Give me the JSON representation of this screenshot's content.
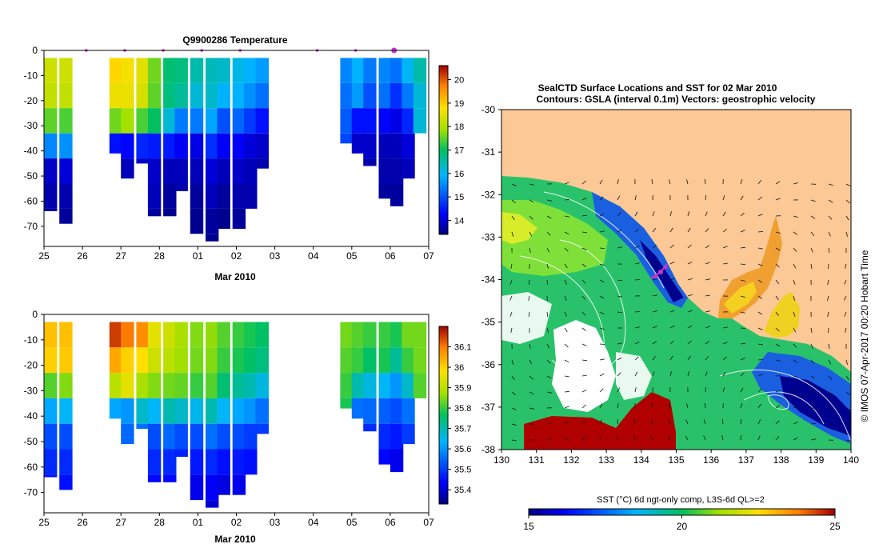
{
  "chart_data": [
    {
      "type": "heatmap",
      "title": "Q9900286  Temperature",
      "xlabel": "Mar 2010",
      "ylabel": "",
      "x_ticks": [
        "25",
        "26",
        "27",
        "28",
        "01",
        "02",
        "03",
        "04",
        "05",
        "06",
        "07"
      ],
      "y_ticks": [
        "0",
        "-10",
        "-20",
        "-30",
        "-40",
        "-50",
        "-60",
        "-70"
      ],
      "ylim": [
        -78,
        0
      ],
      "colorbar": {
        "min": 13.4,
        "max": 20.6,
        "ticks": [
          "14",
          "15",
          "16",
          "17",
          "18",
          "19",
          "20"
        ]
      },
      "surface_markers": [
        26,
        27,
        28,
        29,
        30,
        32,
        33,
        34
      ],
      "profiles": [
        {
          "day": 25.0,
          "values": [
            18.3,
            18.2,
            17.5,
            15.5,
            13.9,
            13.7,
            13.6,
            13.5
          ],
          "bottom": 64
        },
        {
          "day": 25.4,
          "values": [
            18.3,
            18.2,
            17.4,
            15.6,
            14.0,
            13.7,
            13.6,
            13.5
          ],
          "bottom": 69
        },
        {
          "day": 26.7,
          "values": [
            18.9,
            18.6,
            17.6,
            14.4,
            13.8,
            13.7,
            0,
            0
          ],
          "bottom": 41
        },
        {
          "day": 27.0,
          "values": [
            18.7,
            18.6,
            17.9,
            14.3,
            13.8,
            13.7,
            0,
            0
          ],
          "bottom": 51
        },
        {
          "day": 27.4,
          "values": [
            18.5,
            18.4,
            17.4,
            14.6,
            13.9,
            13.8,
            13.7,
            0
          ],
          "bottom": 45
        },
        {
          "day": 27.7,
          "values": [
            17.6,
            17.5,
            17.0,
            14.5,
            13.9,
            13.8,
            13.6,
            0
          ],
          "bottom": 66
        },
        {
          "day": 28.1,
          "values": [
            16.9,
            16.8,
            16.2,
            14.5,
            13.8,
            13.6,
            13.5,
            0
          ],
          "bottom": 66
        },
        {
          "day": 28.4,
          "values": [
            16.8,
            16.6,
            15.4,
            14.2,
            13.8,
            13.7,
            13.6,
            0
          ],
          "bottom": 56
        },
        {
          "day": 28.8,
          "values": [
            16.5,
            16.2,
            15.4,
            14.1,
            13.8,
            13.6,
            13.5,
            13.5
          ],
          "bottom": 73
        },
        {
          "day": 29.2,
          "values": [
            16.4,
            16.3,
            15.8,
            14.7,
            14.0,
            13.8,
            13.6,
            13.5
          ],
          "bottom": 76
        },
        {
          "day": 29.5,
          "values": [
            16.3,
            15.9,
            15.0,
            14.2,
            13.8,
            13.6,
            13.5,
            0
          ],
          "bottom": 71
        },
        {
          "day": 29.9,
          "values": [
            16.1,
            15.9,
            15.2,
            14.2,
            13.9,
            13.7,
            13.6,
            0
          ],
          "bottom": 71
        },
        {
          "day": 30.2,
          "values": [
            15.9,
            15.6,
            14.8,
            14.0,
            13.8,
            13.7,
            0,
            0
          ],
          "bottom": 66
        },
        {
          "day": 30.5,
          "values": [
            15.7,
            15.3,
            14.4,
            13.9,
            13.7,
            0,
            0,
            0
          ],
          "bottom": 47
        },
        {
          "day": 32.7,
          "values": [
            15.5,
            15.3,
            15.1,
            14.9,
            0,
            0,
            0,
            0
          ],
          "bottom": 37
        },
        {
          "day": 33.0,
          "values": [
            15.9,
            15.7,
            14.4,
            13.9,
            13.8,
            0,
            0,
            0
          ],
          "bottom": 41
        },
        {
          "day": 33.3,
          "values": [
            15.4,
            15.0,
            14.4,
            13.9,
            13.7,
            13.6,
            0,
            0
          ],
          "bottom": 46
        },
        {
          "day": 33.7,
          "values": [
            15.5,
            15.3,
            14.3,
            13.8,
            13.7,
            13.6,
            0,
            0
          ],
          "bottom": 59
        },
        {
          "day": 34.0,
          "values": [
            15.3,
            14.7,
            14.1,
            13.8,
            13.7,
            13.6,
            0,
            0
          ],
          "bottom": 62
        },
        {
          "day": 34.3,
          "values": [
            16.0,
            15.4,
            14.6,
            14.0,
            13.8,
            13.6,
            0,
            0
          ],
          "bottom": 51
        },
        {
          "day": 34.6,
          "values": [
            16.5,
            16.2,
            16.2,
            16.1,
            0,
            0,
            0,
            0
          ],
          "bottom": 33
        }
      ]
    },
    {
      "type": "heatmap",
      "title": "",
      "xlabel": "Mar 2010",
      "ylabel": "",
      "x_ticks": [
        "25",
        "26",
        "27",
        "28",
        "01",
        "02",
        "03",
        "04",
        "05",
        "06",
        "07"
      ],
      "y_ticks": [
        "0",
        "-10",
        "-20",
        "-30",
        "-40",
        "-50",
        "-60",
        "-70"
      ],
      "ylim": [
        -78,
        0
      ],
      "colorbar": {
        "min": 35.33,
        "max": 36.2,
        "ticks": [
          "35.4",
          "35.5",
          "35.6",
          "35.7",
          "35.8",
          "35.9",
          "36",
          "36.1"
        ]
      },
      "profiles": [
        {
          "day": 25.0,
          "values": [
            36.02,
            36.0,
            35.82,
            35.62,
            35.52,
            35.48,
            35.45,
            35.42
          ],
          "bottom": 64
        },
        {
          "day": 25.4,
          "values": [
            36.02,
            36.01,
            35.85,
            35.64,
            35.52,
            35.48,
            35.45,
            35.42
          ],
          "bottom": 69
        },
        {
          "day": 26.7,
          "values": [
            36.15,
            36.05,
            35.9,
            35.62,
            35.55,
            35.5,
            0,
            0
          ],
          "bottom": 41
        },
        {
          "day": 27.0,
          "values": [
            36.1,
            36.0,
            35.95,
            35.6,
            35.55,
            35.5,
            0,
            0
          ],
          "bottom": 51
        },
        {
          "day": 27.4,
          "values": [
            36.08,
            35.98,
            35.88,
            35.68,
            35.56,
            35.5,
            35.46,
            0
          ],
          "bottom": 45
        },
        {
          "day": 27.7,
          "values": [
            35.95,
            35.92,
            35.85,
            35.64,
            35.52,
            35.48,
            35.44,
            0
          ],
          "bottom": 66
        },
        {
          "day": 28.1,
          "values": [
            35.92,
            35.9,
            35.84,
            35.7,
            35.55,
            35.48,
            35.44,
            0
          ],
          "bottom": 66
        },
        {
          "day": 28.4,
          "values": [
            35.88,
            35.87,
            35.83,
            35.68,
            35.52,
            35.47,
            35.43,
            0
          ],
          "bottom": 56
        },
        {
          "day": 28.8,
          "values": [
            35.85,
            35.84,
            35.8,
            35.65,
            35.52,
            35.46,
            35.42,
            35.4
          ],
          "bottom": 73
        },
        {
          "day": 29.2,
          "values": [
            35.86,
            35.85,
            35.82,
            35.7,
            35.56,
            35.48,
            35.43,
            35.4
          ],
          "bottom": 76
        },
        {
          "day": 29.5,
          "values": [
            35.82,
            35.8,
            35.75,
            35.64,
            35.52,
            35.45,
            35.41,
            0
          ],
          "bottom": 71
        },
        {
          "day": 29.9,
          "values": [
            35.8,
            35.78,
            35.72,
            35.62,
            35.52,
            35.46,
            35.42,
            0
          ],
          "bottom": 71
        },
        {
          "day": 30.2,
          "values": [
            35.78,
            35.76,
            35.7,
            35.6,
            35.5,
            35.45,
            0,
            0
          ],
          "bottom": 66
        },
        {
          "day": 30.5,
          "values": [
            35.76,
            35.74,
            35.66,
            35.56,
            35.5,
            0,
            0,
            0
          ],
          "bottom": 47
        },
        {
          "day": 32.7,
          "values": [
            35.84,
            35.82,
            35.8,
            35.78,
            0,
            0,
            0,
            0
          ],
          "bottom": 37
        },
        {
          "day": 33.0,
          "values": [
            35.82,
            35.8,
            35.7,
            35.56,
            35.5,
            0,
            0,
            0
          ],
          "bottom": 41
        },
        {
          "day": 33.3,
          "values": [
            35.8,
            35.76,
            35.66,
            35.55,
            35.48,
            35.44,
            0,
            0
          ],
          "bottom": 46
        },
        {
          "day": 33.7,
          "values": [
            35.8,
            35.78,
            35.64,
            35.54,
            35.48,
            35.44,
            0,
            0
          ],
          "bottom": 59
        },
        {
          "day": 34.0,
          "values": [
            35.78,
            35.72,
            35.6,
            35.52,
            35.46,
            35.42,
            0,
            0
          ],
          "bottom": 62
        },
        {
          "day": 34.3,
          "values": [
            35.84,
            35.8,
            35.68,
            35.56,
            35.5,
            35.46,
            0,
            0
          ],
          "bottom": 51
        },
        {
          "day": 34.6,
          "values": [
            35.84,
            35.84,
            35.82,
            35.8,
            0,
            0,
            0,
            0
          ],
          "bottom": 33
        }
      ]
    },
    {
      "type": "heatmap",
      "title": "SealCTD Surface Locations and SST for 02 Mar 2010",
      "subtitle": "Contours: GSLA (interval 0.1m) Vectors: geostrophic velocity",
      "xlabel": "",
      "ylabel": "",
      "x_ticks": [
        "130",
        "131",
        "132",
        "133",
        "134",
        "135",
        "136",
        "137",
        "138",
        "139",
        "140"
      ],
      "y_ticks": [
        "-30",
        "-31",
        "-32",
        "-33",
        "-34",
        "-35",
        "-36",
        "-37",
        "-38"
      ],
      "xlim": [
        130,
        140
      ],
      "ylim": [
        -38,
        -30
      ],
      "colorbar": {
        "label": "SST (°C) 6d ngt-only comp, L3S-6d QL>=2",
        "min": 15,
        "max": 25,
        "ticks": [
          "15",
          "20",
          "25"
        ]
      },
      "seal_locations": [
        [
          134.6,
          -33.9
        ],
        [
          134.5,
          -33.95
        ],
        [
          134.7,
          -33.8
        ]
      ],
      "credit": "© IMOS 07-Apr-2017 00:20 Hobart Time"
    }
  ],
  "colors": {
    "land": "#fbc896",
    "missing": "#ffffff",
    "marker": "#cc33cc",
    "frame": "#000000"
  }
}
